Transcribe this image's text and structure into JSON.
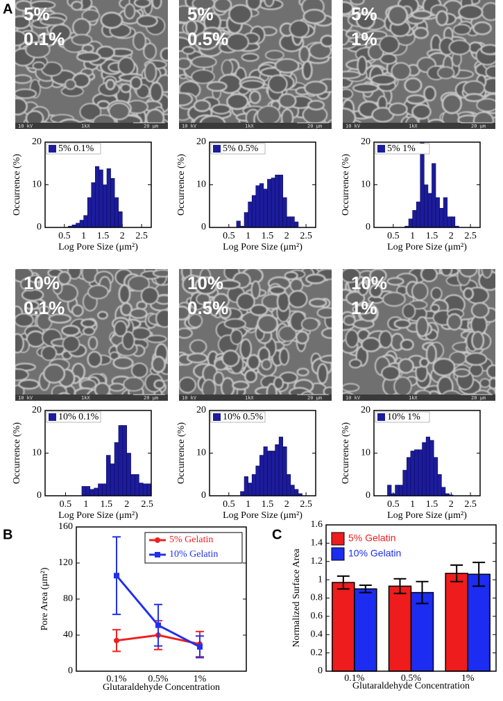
{
  "panel_labels": [
    "A",
    "B",
    "C"
  ],
  "images": [
    {
      "labels": [
        "5%",
        "0.1%"
      ],
      "scale_bar": [
        "10 kV",
        "1kX",
        "20 μm"
      ]
    },
    {
      "labels": [
        "5%",
        "0.5%"
      ],
      "scale_bar": [
        "10 kV",
        "1kX",
        "20 μm"
      ]
    },
    {
      "labels": [
        "5%",
        "1%"
      ],
      "scale_bar": [
        "10 kV",
        "1kX",
        "20 μm"
      ]
    },
    {
      "labels": [
        "10%",
        "0.1%"
      ],
      "scale_bar": [
        "10 kV",
        "1kX",
        "20 μm"
      ]
    },
    {
      "labels": [
        "10%",
        "0.5%"
      ],
      "scale_bar": [
        "10 kV",
        "1kX",
        "20 μm"
      ]
    },
    {
      "labels": [
        "10%",
        "1%"
      ],
      "scale_bar": [
        "10 kV",
        "1kX",
        "20 μm"
      ]
    }
  ],
  "chart_data": [
    {
      "type": "histogram",
      "xlabel": "Log Pore Size (μm²)",
      "ylabel": "Occurrence (%)",
      "bins": [
        0.6,
        0.7,
        0.8,
        0.9,
        1.0,
        1.1,
        1.2,
        1.3,
        1.4,
        1.5,
        1.6,
        1.7,
        1.8,
        1.9,
        2.0
      ],
      "series": [
        {
          "name": "5% 0.1%",
          "color": "#1c1c9c",
          "values": [
            0.3,
            0.6,
            1,
            1.7,
            2.8,
            7,
            10.5,
            14.3,
            13.5,
            10,
            13.8,
            11.5,
            7,
            3.7
          ]
        }
      ],
      "xlim": [
        0,
        2.75
      ],
      "xticks": [
        0.5,
        1,
        1.5,
        2,
        2.5
      ],
      "ylim": [
        0,
        20
      ],
      "yticks": [
        0,
        10,
        20
      ]
    },
    {
      "type": "histogram",
      "xlabel": "Log Pore Size (μm²)",
      "ylabel": "Occurrence (%)",
      "bins": [
        0.7,
        0.8,
        0.9,
        1.0,
        1.1,
        1.2,
        1.3,
        1.4,
        1.5,
        1.6,
        1.7,
        1.8,
        1.9,
        2.0,
        2.1,
        2.2,
        2.3
      ],
      "series": [
        {
          "name": "5% 0.5%",
          "color": "#1c1c9c",
          "values": [
            1.5,
            0.3,
            3.5,
            6,
            7.5,
            9.8,
            10.3,
            9,
            11.3,
            11.6,
            12.3,
            12.3,
            7,
            2.5,
            2.5,
            1.3
          ]
        }
      ],
      "xlim": [
        0,
        2.75
      ],
      "xticks": [
        0.5,
        1,
        1.5,
        2,
        2.5
      ],
      "ylim": [
        0,
        20
      ],
      "yticks": [
        0,
        10,
        20
      ]
    },
    {
      "type": "histogram",
      "xlabel": "Log Pore Size (μm²)",
      "ylabel": "Occurrence (%)",
      "bins": [
        0.8,
        0.9,
        1.0,
        1.1,
        1.2,
        1.3,
        1.4,
        1.5,
        1.6,
        1.7,
        1.8,
        1.9,
        2.0,
        2.1,
        2.2
      ],
      "series": [
        {
          "name": "5% 1%",
          "color": "#1c1c9c",
          "values": [
            0.3,
            2,
            4,
            6,
            19.8,
            10,
            8,
            15,
            7,
            4.5,
            7,
            2.5,
            2.5,
            0.3
          ]
        }
      ],
      "xlim": [
        0,
        2.75
      ],
      "xticks": [
        0.5,
        1,
        1.5,
        2,
        2.5
      ],
      "ylim": [
        0,
        20
      ],
      "yticks": [
        0,
        10,
        20
      ]
    },
    {
      "type": "histogram",
      "xlabel": "Log Pore Size (μm²)",
      "ylabel": "Occurrence (%)",
      "bins": [
        0.9,
        1.0,
        1.1,
        1.2,
        1.3,
        1.4,
        1.5,
        1.6,
        1.7,
        1.8,
        1.9,
        2.0,
        2.1,
        2.2,
        2.3,
        2.4,
        2.5,
        2.6
      ],
      "series": [
        {
          "name": "10% 0.1%",
          "color": "#1c1c9c",
          "values": [
            2.2,
            2.2,
            1.5,
            1.8,
            2.8,
            2.8,
            9.5,
            7.5,
            12.5,
            16.5,
            16.5,
            10,
            5,
            5,
            3,
            2.8,
            2.8
          ]
        }
      ],
      "xlim": [
        0,
        2.6
      ],
      "xticks": [
        0.5,
        1,
        1.5,
        2,
        2.5
      ],
      "ylim": [
        0,
        20
      ],
      "yticks": [
        0,
        10,
        20
      ]
    },
    {
      "type": "histogram",
      "xlabel": "Log Pore Size (μm²)",
      "ylabel": "Occurrence (%)",
      "bins": [
        0.8,
        0.9,
        1.0,
        1.1,
        1.2,
        1.3,
        1.4,
        1.5,
        1.6,
        1.7,
        1.8,
        1.9,
        2.0,
        2.1,
        2.2,
        2.3,
        2.4
      ],
      "series": [
        {
          "name": "10% 0.5%",
          "color": "#1c1c9c",
          "values": [
            1,
            4.5,
            3,
            5,
            7,
            9.5,
            11.5,
            10.5,
            10.5,
            12,
            13.8,
            11.5,
            5,
            2.5,
            1.5,
            0.5
          ]
        }
      ],
      "xlim": [
        0,
        2.75
      ],
      "xticks": [
        0.5,
        1,
        1.5,
        2,
        2.5
      ],
      "ylim": [
        0,
        20
      ],
      "yticks": [
        0,
        10,
        20
      ]
    },
    {
      "type": "histogram",
      "xlabel": "Log Pore Size (μm²)",
      "ylabel": "Occurrence (%)",
      "bins": [
        0.35,
        0.45,
        0.55,
        0.65,
        0.75,
        0.85,
        0.95,
        1.05,
        1.15,
        1.25,
        1.35,
        1.45,
        1.55,
        1.65,
        1.75,
        1.85,
        1.95,
        2.05
      ],
      "series": [
        {
          "name": "10% 1%",
          "color": "#1c1c9c",
          "values": [
            2.5,
            0.5,
            2.5,
            2.5,
            6,
            9,
            10.5,
            10.8,
            10.8,
            12.5,
            13.8,
            13,
            9,
            5,
            2,
            0.5,
            0.2
          ]
        }
      ],
      "xlim": [
        0,
        2.75
      ],
      "xticks": [
        0.5,
        1,
        1.5,
        2,
        2.5
      ],
      "ylim": [
        0,
        20
      ],
      "yticks": [
        0,
        10,
        20
      ]
    },
    {
      "type": "line",
      "xlabel": "Glutaraldehyde Concentration",
      "ylabel": "Pore Area (μm²)",
      "categories": [
        "0.1%",
        "0.5%",
        "1%"
      ],
      "series": [
        {
          "name": "5% Gelatin",
          "color": "#ee2020",
          "marker": "circle",
          "values": [
            34,
            40,
            30
          ],
          "errors": [
            12,
            16,
            14
          ]
        },
        {
          "name": "10% Gelatin",
          "color": "#2030ee",
          "marker": "square",
          "values": [
            106,
            51,
            27
          ],
          "errors": [
            43,
            23,
            12
          ]
        }
      ],
      "ylim": [
        0,
        160
      ],
      "yticks": [
        0,
        40,
        80,
        120,
        160
      ],
      "legend": "top-right"
    },
    {
      "type": "bar",
      "xlabel": "Glutaraldehyde Concentration",
      "ylabel": "Normalized Surface Area",
      "categories": [
        "0.1%",
        "0.5%",
        "1%"
      ],
      "series": [
        {
          "name": "5% Gelatin",
          "color": "#ee1c1c",
          "values": [
            0.97,
            0.93,
            1.07
          ],
          "errors": [
            0.07,
            0.08,
            0.09
          ]
        },
        {
          "name": "10% Gelatin",
          "color": "#1c2cf0",
          "values": [
            0.9,
            0.86,
            1.06
          ],
          "errors": [
            0.04,
            0.12,
            0.13
          ]
        }
      ],
      "ylim": [
        0,
        1.6
      ],
      "yticks": [
        0,
        0.2,
        0.4,
        0.6,
        0.8,
        1,
        1.2,
        1.4,
        1.6
      ],
      "legend": "top-left"
    }
  ]
}
